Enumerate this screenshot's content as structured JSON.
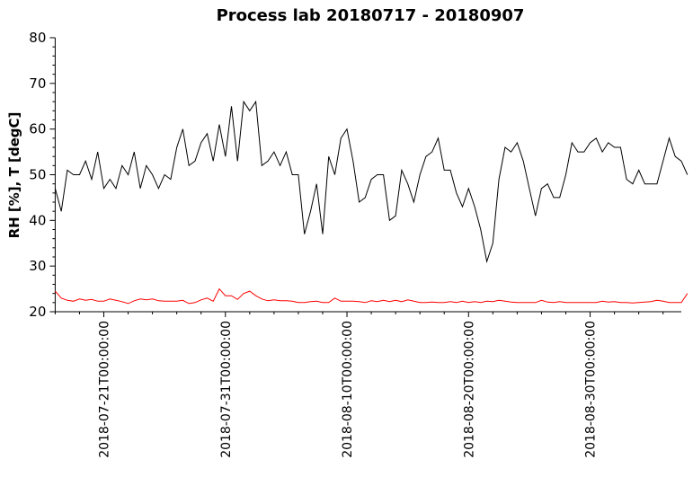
{
  "chart_data": {
    "type": "line",
    "title": "Process lab 20180717 - 20180907",
    "xlabel": "",
    "ylabel": "RH [%], T [degC]",
    "x_start": "2018-07-17",
    "x_step_days": 0.5,
    "xlim_days": [
      0,
      51.5
    ],
    "ylim": [
      20,
      80
    ],
    "yticks": [
      20,
      30,
      40,
      50,
      60,
      70,
      80
    ],
    "xtick_days": [
      4,
      14,
      24,
      34,
      44
    ],
    "xtick_labels": [
      "2018-07-21T00:00:00",
      "2018-07-31T00:00:00",
      "2018-08-10T00:00:00",
      "2018-08-20T00:00:00",
      "2018-08-30T00:00:00"
    ],
    "grid": false,
    "series": [
      {
        "name": "RH",
        "color": "#000000",
        "values": [
          47,
          42,
          51,
          50,
          50,
          53,
          49,
          55,
          47,
          49,
          47,
          52,
          50,
          55,
          47,
          52,
          50,
          47,
          50,
          49,
          56,
          60,
          52,
          53,
          57,
          59,
          53,
          61,
          54,
          65,
          53,
          66,
          64,
          66,
          52,
          53,
          55,
          52,
          55,
          50,
          50,
          37,
          42,
          48,
          37,
          54,
          50,
          58,
          60,
          53,
          44,
          45,
          49,
          50,
          50,
          40,
          41,
          51,
          48,
          44,
          50,
          54,
          55,
          58,
          51,
          51,
          46,
          43,
          47,
          43,
          38,
          31,
          35,
          49,
          56,
          55,
          57,
          53,
          47,
          41,
          47,
          48,
          45,
          45,
          50,
          57,
          55,
          55,
          57,
          58,
          55,
          57,
          56,
          56,
          49,
          48,
          51,
          48,
          48,
          48,
          53,
          58,
          54,
          53,
          50
        ]
      },
      {
        "name": "T",
        "color": "#ff0000",
        "values": [
          24.5,
          23,
          22.5,
          22.3,
          22.8,
          22.5,
          22.7,
          22.3,
          22.3,
          22.8,
          22.5,
          22.2,
          21.8,
          22.4,
          22.8,
          22.6,
          22.8,
          22.4,
          22.3,
          22.3,
          22.3,
          22.5,
          21.8,
          22,
          22.6,
          23,
          22.3,
          25,
          23.5,
          23.5,
          22.7,
          24,
          24.5,
          23.5,
          22.8,
          22.4,
          22.6,
          22.4,
          22.4,
          22.3,
          22,
          22,
          22.2,
          22.3,
          22,
          22,
          23,
          22.3,
          22.3,
          22.3,
          22.2,
          22,
          22.4,
          22.2,
          22.5,
          22.2,
          22.5,
          22.2,
          22.6,
          22.3,
          22,
          22,
          22.1,
          22,
          22,
          22.2,
          22,
          22.3,
          22,
          22.2,
          22,
          22.3,
          22.2,
          22.5,
          22.3,
          22.1,
          22,
          22,
          22,
          22,
          22.5,
          22.1,
          22,
          22.2,
          22,
          22,
          22,
          22,
          22,
          22,
          22.3,
          22.1,
          22.2,
          22,
          22,
          21.9,
          22,
          22.1,
          22.2,
          22.5,
          22.3,
          22,
          22,
          22,
          24
        ]
      }
    ]
  }
}
